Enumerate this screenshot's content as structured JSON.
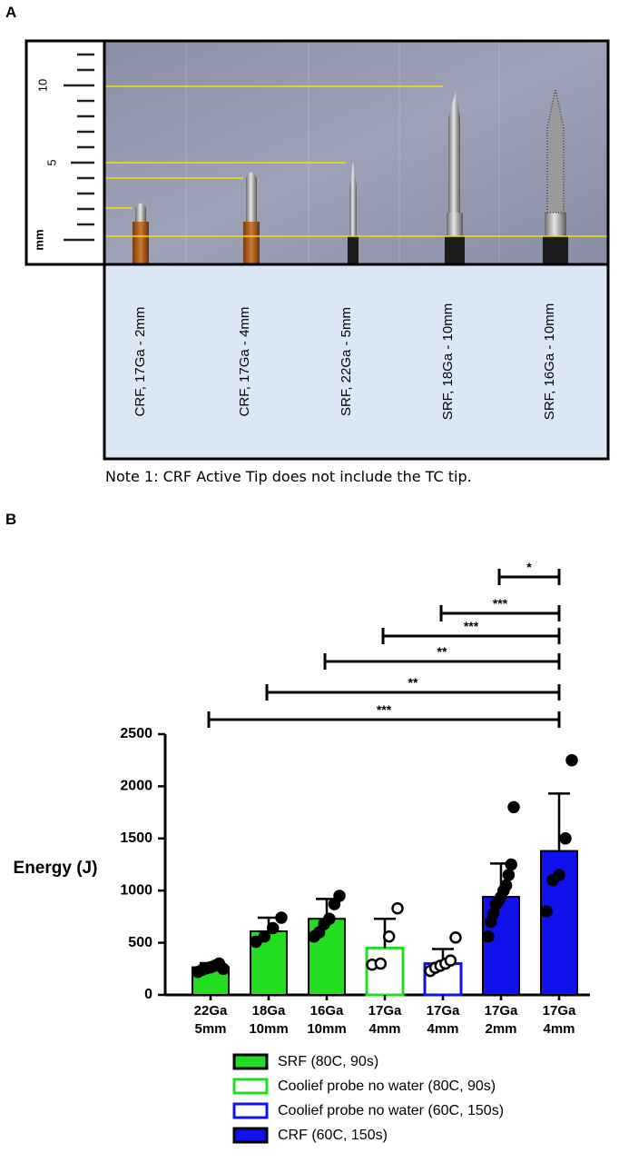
{
  "panel_a": {
    "letter": "A",
    "ruler_unit": "mm",
    "ruler_ticks": [
      "10",
      "5"
    ],
    "labels": [
      "CRF, 17Ga - 2mm",
      "CRF, 17Ga - 4mm",
      "SRF, 22Ga - 5mm",
      "SRF, 18Ga - 10mm",
      "SRF, 16Ga - 10mm"
    ],
    "note": "Note 1: CRF Active Tip does not include the TC tip."
  },
  "panel_b": {
    "letter": "B"
  },
  "chart_data": {
    "type": "bar",
    "ylabel": "Energy (J)",
    "ylim": [
      0,
      2500
    ],
    "yticks": [
      "0",
      "500",
      "1000",
      "1500",
      "2000",
      "2500"
    ],
    "categories": [
      {
        "line1": "22Ga",
        "line2": "5mm"
      },
      {
        "line1": "18Ga",
        "line2": "10mm"
      },
      {
        "line1": "16Ga",
        "line2": "10mm"
      },
      {
        "line1": "17Ga",
        "line2": "4mm"
      },
      {
        "line1": "17Ga",
        "line2": "4mm"
      },
      {
        "line1": "17Ga",
        "line2": "2mm"
      },
      {
        "line1": "17Ga",
        "line2": "4mm"
      }
    ],
    "bars": [
      {
        "group": 0,
        "mean": 265,
        "sd": 40,
        "points": [
          220,
          240,
          255,
          265,
          280,
          300,
          250
        ]
      },
      {
        "group": 0,
        "mean": 610,
        "sd": 130,
        "points": [
          510,
          560,
          640,
          740
        ]
      },
      {
        "group": 0,
        "mean": 730,
        "sd": 190,
        "points": [
          560,
          600,
          680,
          730,
          870,
          950
        ]
      },
      {
        "group": 1,
        "mean": 450,
        "sd": 280,
        "points": [
          290,
          300,
          560,
          830
        ]
      },
      {
        "group": 2,
        "mean": 300,
        "sd": 140,
        "points": [
          230,
          260,
          280,
          300,
          330,
          550
        ]
      },
      {
        "group": 3,
        "mean": 940,
        "sd": 320,
        "points": [
          560,
          700,
          780,
          870,
          900,
          940,
          1000,
          1050,
          1150,
          1250,
          1800
        ]
      },
      {
        "group": 3,
        "mean": 1380,
        "sd": 550,
        "points": [
          800,
          1100,
          1150,
          1500,
          2250
        ]
      }
    ],
    "significance": [
      {
        "from": 5,
        "to": 6,
        "label": "*"
      },
      {
        "from": 4,
        "to": 6,
        "label": "***"
      },
      {
        "from": 3,
        "to": 6,
        "label": "***"
      },
      {
        "from": 2,
        "to": 6,
        "label": "**"
      },
      {
        "from": 1,
        "to": 6,
        "label": "**"
      },
      {
        "from": 0,
        "to": 6,
        "label": "***"
      }
    ],
    "legend": [
      {
        "label": "SRF (80C, 90s)",
        "fill": "#22dd22",
        "stroke": "#000000"
      },
      {
        "label": "Coolief probe no water (80C, 90s)",
        "fill": "#ffffff",
        "stroke": "#22dd22"
      },
      {
        "label": "Coolief probe no water (60C, 150s)",
        "fill": "#ffffff",
        "stroke": "#1111ee"
      },
      {
        "label": "CRF (60C, 150s)",
        "fill": "#1111ee",
        "stroke": "#000000"
      }
    ]
  }
}
